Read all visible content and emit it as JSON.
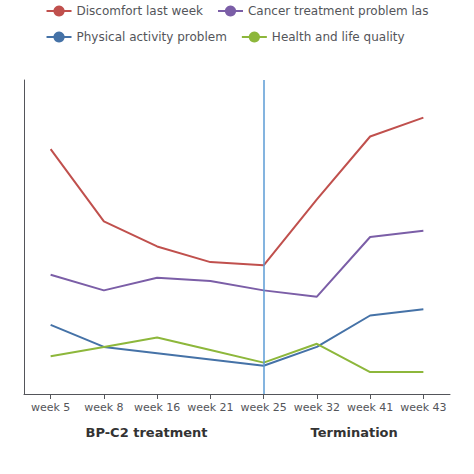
{
  "chart_data": {
    "type": "line",
    "categories": [
      "week 5",
      "week 8",
      "week 16",
      "week 21",
      "week 25",
      "week 32",
      "week 41",
      "week 43"
    ],
    "series": [
      {
        "name": "Discomfort last week",
        "color": "#c0504d",
        "values": [
          78,
          55,
          47,
          42,
          41,
          62,
          82,
          88
        ]
      },
      {
        "name": "Cancer treatment problem las",
        "color": "#7b5ea7",
        "values": [
          38,
          33,
          37,
          36,
          33,
          31,
          50,
          52
        ]
      },
      {
        "name": "Physical activity problem",
        "color": "#4572a7",
        "values": [
          22,
          15,
          13,
          11,
          9,
          15,
          25,
          27
        ]
      },
      {
        "name": "Health and life quality",
        "color": "#8db73b",
        "values": [
          12,
          15,
          18,
          14,
          10,
          16,
          7,
          7
        ]
      }
    ],
    "divider": {
      "x": 4,
      "color": "#5b9bd5"
    },
    "annotations": [
      {
        "text": "BP-C2 treatment",
        "x": 1.8
      },
      {
        "text": "Termination",
        "x": 5.7
      }
    ],
    "ylim": [
      0,
      100
    ],
    "tick_labels": "x",
    "grid": false,
    "legend": "top"
  }
}
